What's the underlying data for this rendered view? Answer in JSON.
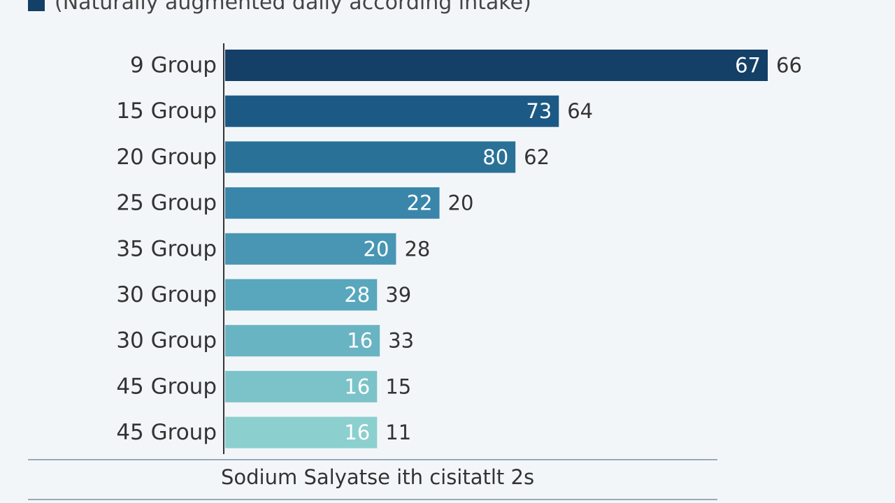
{
  "legend": {
    "label": "(Naturally augmented daily according intake)",
    "color": "#143f67"
  },
  "chart_data": {
    "type": "bar",
    "orientation": "horizontal",
    "categories": [
      "9 Group",
      "15 Group",
      "20 Group",
      "25 Group",
      "35 Group",
      "30 Group",
      "30 Group",
      "45 Group",
      "45 Group"
    ],
    "values": [
      67,
      73,
      80,
      22,
      20,
      28,
      16,
      16,
      16
    ],
    "secondary_values": [
      66,
      64,
      62,
      20,
      28,
      39,
      33,
      15,
      11
    ],
    "bar_lengths": [
      100,
      61.5,
      53.5,
      39.5,
      31.5,
      28,
      28.5,
      28,
      28
    ],
    "xlim": [
      0,
      100
    ],
    "xlabel": "Sodium Salyatse ith cisitatlt 2s",
    "ylabel": "",
    "title": "",
    "grid": false,
    "colors": [
      "#143f67",
      "#1c5a85",
      "#2a7198",
      "#3a86aa",
      "#4896b3",
      "#59a7bc",
      "#69b4c2",
      "#7cc3c9",
      "#8ccfcf"
    ]
  }
}
